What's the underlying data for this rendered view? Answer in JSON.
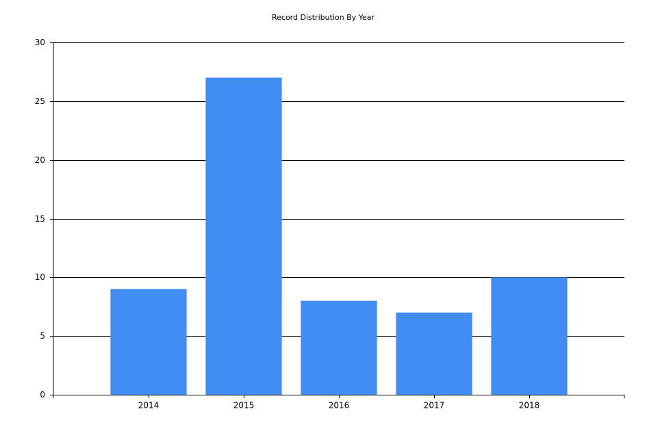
{
  "chart_data": {
    "type": "bar",
    "title": "Record Distribution By Year",
    "categories": [
      "2014",
      "2015",
      "2016",
      "2017",
      "2018"
    ],
    "values": [
      9,
      27,
      8,
      7,
      10
    ],
    "color": "#418cf0",
    "ylim": [
      0,
      30
    ],
    "yticks": [
      0,
      5,
      10,
      15,
      20,
      25,
      30
    ],
    "grid": true
  }
}
